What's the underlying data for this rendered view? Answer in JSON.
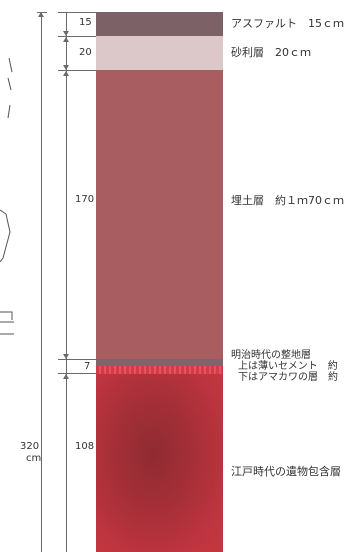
{
  "total_depth": {
    "value": "320",
    "unit": "cm"
  },
  "layers": [
    {
      "depth": "15",
      "label": "アスファルト　15ｃｍ",
      "color": "#7c6266"
    },
    {
      "depth": "20",
      "label": "砂利層　20ｃｍ",
      "color": "#dcc8c9"
    },
    {
      "depth": "170",
      "label": "埋土層　約１ｍ70ｃｍ",
      "color": "#a85e61"
    },
    {
      "depth": "7",
      "label_lines": [
        "明治時代の整地層",
        "上は薄いセメント　約",
        "下はアマカワの層　約"
      ],
      "color_top": "#7d6669",
      "color_bottom": "#d53a46"
    },
    {
      "depth": "108",
      "label": "江戸時代の遺物包含層",
      "color": "#b8323d"
    }
  ]
}
